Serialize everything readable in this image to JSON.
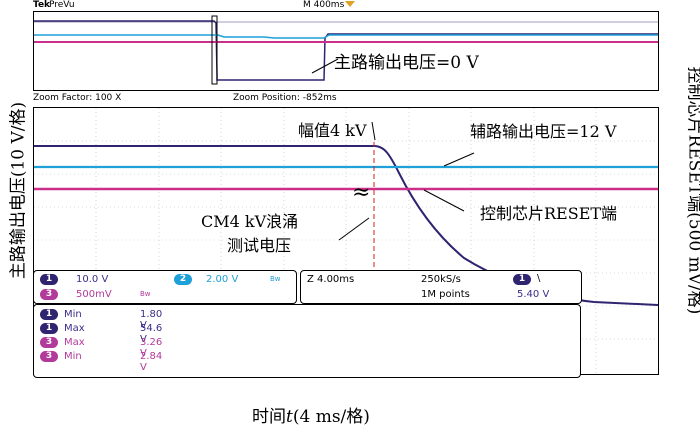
{
  "topbar": {
    "brand": "Tek",
    "mode": "PreVu",
    "timebase": "M 400ms"
  },
  "zoombar": {
    "zoom_factor": "Zoom Factor: 100 X",
    "zoom_position": "Zoom Position: -852ms"
  },
  "annotations": {
    "main_out": "主路输出电压=0 V",
    "amplitude": "幅值4 kV",
    "aux_out": "辅路输出电压=12 V",
    "reset": "控制芯片RESET端",
    "surge_line1": "CM4 kV浪涌",
    "surge_line2": "测试电压",
    "break_mark": "≈"
  },
  "axes": {
    "left_label": "主路输出电压(10 V/格)",
    "right_label": "控制芯片RESET端(500 mV/格)",
    "bottom_label_prefix": "时间",
    "bottom_label_var": "t",
    "bottom_label_suffix": "(4 ms/格)"
  },
  "channels": {
    "ch1_num": "1",
    "ch1_scale": "10.0 V",
    "ch2_num": "2",
    "ch2_scale": "2.00 V",
    "ch3_num": "3",
    "ch3_scale": "500mV",
    "bw1": "Bw",
    "bw2": "Bw"
  },
  "acq": {
    "time": "Z 4.00ms",
    "rate": "250kS/s",
    "points": "1M points",
    "trig_ch": "1",
    "trig_slope": "\\",
    "trig_level": "5.40 V"
  },
  "measurements": [
    {
      "ch": "1",
      "name": "Min",
      "value": "1.80 V"
    },
    {
      "ch": "1",
      "name": "Max",
      "value": "54.6 V"
    },
    {
      "ch": "3",
      "name": "Max",
      "value": "3.26 V"
    },
    {
      "ch": "3",
      "name": "Min",
      "value": "2.84 V"
    }
  ],
  "colors": {
    "ch1": "#2e2470",
    "ch2": "#1ea0d8",
    "ch3": "#cc2f8a",
    "cursor": "#cc2222"
  }
}
